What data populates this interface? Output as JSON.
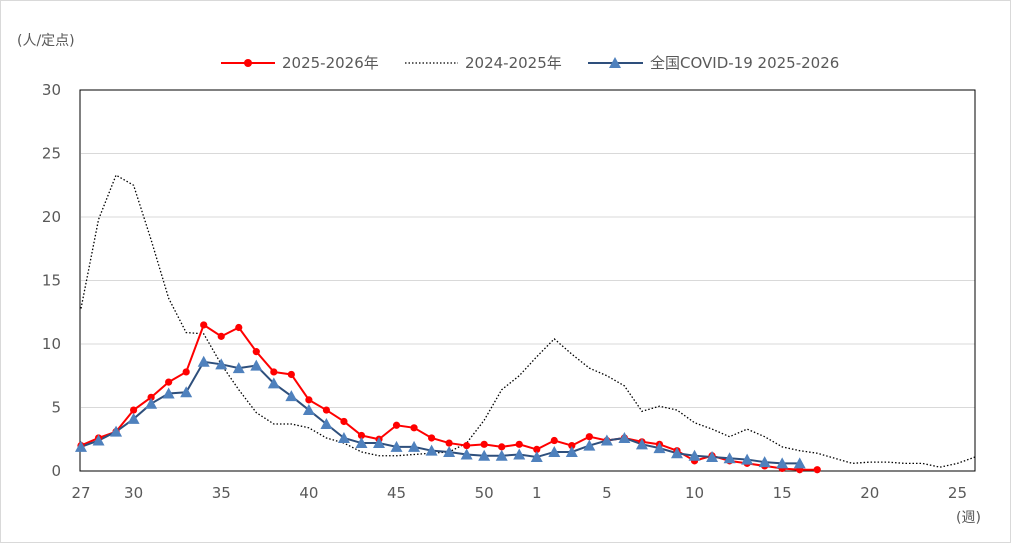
{
  "chart_data": {
    "type": "line",
    "title": "",
    "ylabel": "(人/定点)",
    "xlabel": "(週)",
    "ylim": [
      0,
      30
    ],
    "grid": "horizontal",
    "legend_position": "top",
    "y_ticks": [
      "0",
      "5",
      "10",
      "15",
      "20",
      "25",
      "30"
    ],
    "x_tick_labels": [
      "27",
      "30",
      "35",
      "40",
      "45",
      "50",
      "1",
      "5",
      "10",
      "15",
      "20",
      "25"
    ],
    "series": [
      {
        "name": "2025-2026年",
        "style": "red-line-circle",
        "color": "#ff0000",
        "x": [
          "27",
          "28",
          "29",
          "30",
          "31",
          "32",
          "33",
          "34",
          "35",
          "36",
          "37",
          "38",
          "39",
          "40",
          "41",
          "42",
          "43",
          "44",
          "45",
          "46",
          "47",
          "48",
          "49",
          "50",
          "51",
          "52",
          "1",
          "2",
          "3",
          "4",
          "5",
          "6",
          "7",
          "8",
          "9",
          "10",
          "11",
          "12",
          "13",
          "14",
          "15",
          "16",
          "17"
        ],
        "values": [
          2.0,
          2.6,
          3.1,
          4.8,
          5.8,
          7.0,
          7.8,
          11.5,
          10.6,
          11.3,
          9.4,
          7.8,
          7.6,
          5.6,
          4.8,
          3.9,
          2.8,
          2.5,
          3.6,
          3.4,
          2.6,
          2.2,
          2.0,
          2.1,
          1.9,
          2.1,
          1.7,
          2.4,
          2.0,
          2.7,
          2.4,
          2.6,
          2.3,
          2.1,
          1.6,
          0.8,
          1.2,
          0.8,
          0.6,
          0.4,
          0.2,
          0.1,
          0.1
        ]
      },
      {
        "name": "2024-2025年",
        "style": "black-dotted",
        "color": "#000000",
        "x": [
          "27",
          "28",
          "29",
          "30",
          "31",
          "32",
          "33",
          "34",
          "35",
          "36",
          "37",
          "38",
          "39",
          "40",
          "41",
          "42",
          "43",
          "44",
          "45",
          "46",
          "47",
          "48",
          "49",
          "50",
          "51",
          "52",
          "1",
          "2",
          "3",
          "4",
          "5",
          "6",
          "7",
          "8",
          "9",
          "10",
          "11",
          "12",
          "13",
          "14",
          "15",
          "16",
          "17",
          "18",
          "19",
          "20",
          "21",
          "22",
          "23",
          "24",
          "25",
          "26"
        ],
        "values": [
          12.8,
          19.8,
          23.3,
          22.5,
          18.2,
          13.6,
          10.9,
          10.8,
          8.4,
          6.4,
          4.6,
          3.7,
          3.7,
          3.4,
          2.6,
          2.2,
          1.5,
          1.2,
          1.2,
          1.3,
          1.4,
          1.5,
          2.2,
          4.0,
          6.4,
          7.5,
          9.0,
          10.4,
          9.2,
          8.1,
          7.5,
          6.7,
          4.7,
          5.1,
          4.8,
          3.8,
          3.3,
          2.7,
          3.3,
          2.7,
          1.9,
          1.6,
          1.4,
          1.0,
          0.6,
          0.7,
          0.7,
          0.6,
          0.6,
          0.3,
          0.6,
          1.1
        ]
      },
      {
        "name": "全国COVID-19  2025-2026",
        "style": "blue-line-triangle",
        "color": "#2e4f7c",
        "x": [
          "27",
          "28",
          "29",
          "30",
          "31",
          "32",
          "33",
          "34",
          "35",
          "36",
          "37",
          "38",
          "39",
          "40",
          "41",
          "42",
          "43",
          "44",
          "45",
          "46",
          "47",
          "48",
          "49",
          "50",
          "51",
          "52",
          "1",
          "2",
          "3",
          "4",
          "5",
          "6",
          "7",
          "8",
          "9",
          "10",
          "11",
          "12",
          "13",
          "14",
          "15",
          "16"
        ],
        "values": [
          1.9,
          2.4,
          3.1,
          4.1,
          5.3,
          6.1,
          6.2,
          8.6,
          8.4,
          8.1,
          8.3,
          6.9,
          5.9,
          4.8,
          3.7,
          2.6,
          2.2,
          2.2,
          1.9,
          1.9,
          1.6,
          1.5,
          1.3,
          1.2,
          1.2,
          1.3,
          1.1,
          1.5,
          1.5,
          2.0,
          2.4,
          2.6,
          2.1,
          1.8,
          1.4,
          1.2,
          1.1,
          1.0,
          0.9,
          0.7,
          0.6,
          0.6
        ]
      }
    ]
  }
}
